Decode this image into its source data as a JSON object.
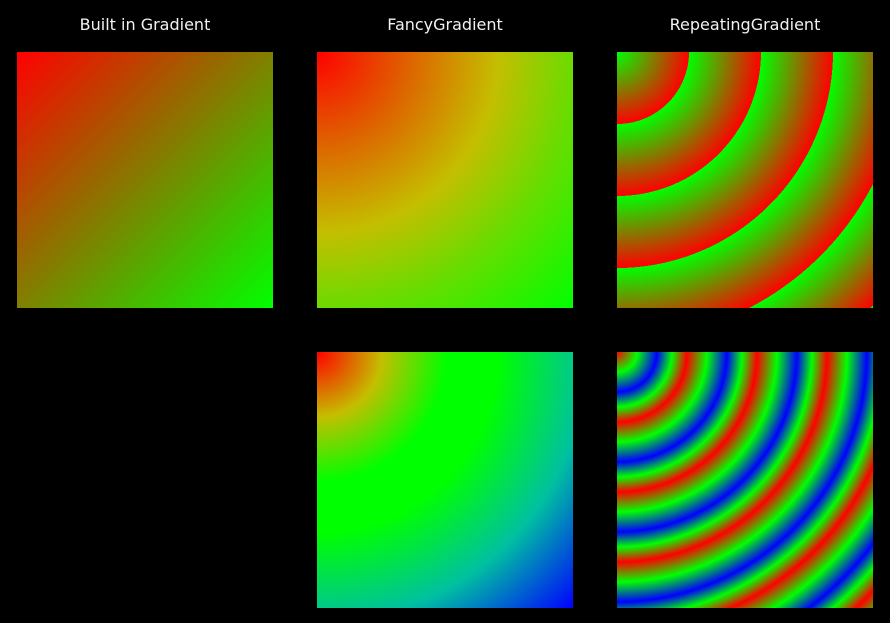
{
  "columns": [
    {
      "title": "Built in Gradient"
    },
    {
      "title": "FancyGradient"
    },
    {
      "title": "RepeatingGradient"
    }
  ],
  "swatches": [
    {
      "id": "sw-builtin",
      "column": "Built in Gradient",
      "colors": [
        "#ff0000",
        "#00ff00"
      ]
    },
    {
      "id": "sw-fancy-1",
      "column": "FancyGradient",
      "colors": [
        "#ff0000",
        "#c4be00",
        "#00ff00"
      ]
    },
    {
      "id": "sw-repeat-1",
      "column": "RepeatingGradient",
      "colors": [
        "#00ff00",
        "#ff0000"
      ]
    },
    {
      "id": "sw-fancy-2",
      "column": "FancyGradient",
      "colors": [
        "#ff0000",
        "#c4be00",
        "#00ff00",
        "#0000ff"
      ]
    },
    {
      "id": "sw-repeat-2",
      "column": "RepeatingGradient",
      "colors": [
        "#ff0000",
        "#00ff00",
        "#0000ff"
      ]
    }
  ]
}
